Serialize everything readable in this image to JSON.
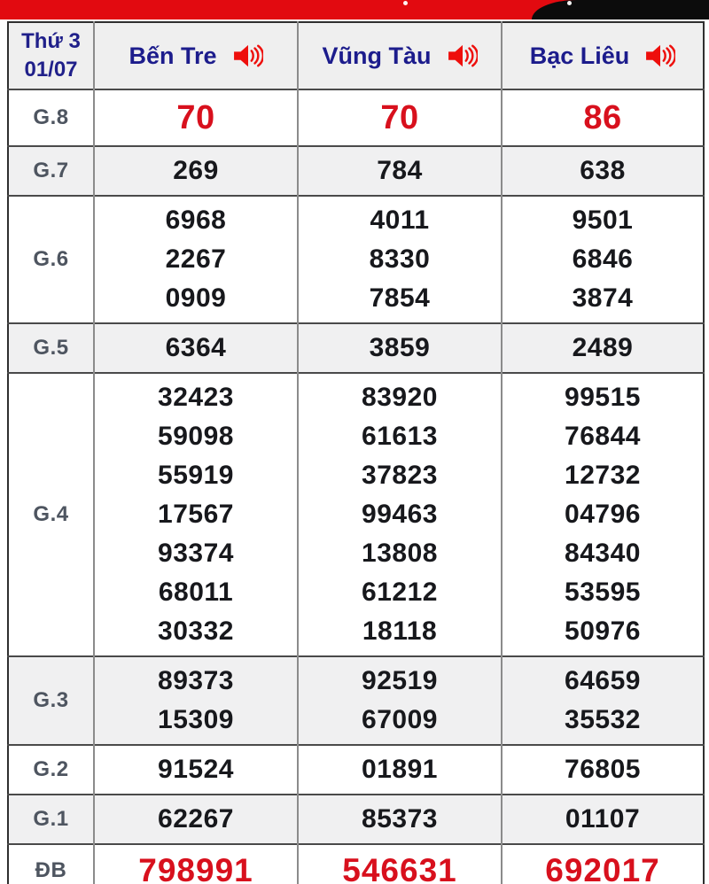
{
  "banner": {
    "red_color": "#e20a10",
    "black_color": "#0c0c0c"
  },
  "header": {
    "date_line1": "Thứ 3",
    "date_line2": "01/07",
    "columns": [
      {
        "label": "Bến Tre"
      },
      {
        "label": "Vũng Tàu"
      },
      {
        "label": "Bạc Liêu"
      }
    ]
  },
  "results": {
    "rows": [
      {
        "key": "g8",
        "prize": "G.8",
        "highlight": true,
        "cells": [
          [
            "70"
          ],
          [
            "70"
          ],
          [
            "86"
          ]
        ]
      },
      {
        "key": "g7",
        "prize": "G.7",
        "cells": [
          [
            "269"
          ],
          [
            "784"
          ],
          [
            "638"
          ]
        ]
      },
      {
        "key": "g6",
        "prize": "G.6",
        "cells": [
          [
            "6968",
            "2267",
            "0909"
          ],
          [
            "4011",
            "8330",
            "7854"
          ],
          [
            "9501",
            "6846",
            "3874"
          ]
        ]
      },
      {
        "key": "g5",
        "prize": "G.5",
        "cells": [
          [
            "6364"
          ],
          [
            "3859"
          ],
          [
            "2489"
          ]
        ]
      },
      {
        "key": "g4",
        "prize": "G.4",
        "cells": [
          [
            "32423",
            "59098",
            "55919",
            "17567",
            "93374",
            "68011",
            "30332"
          ],
          [
            "83920",
            "61613",
            "37823",
            "99463",
            "13808",
            "61212",
            "18118"
          ],
          [
            "99515",
            "76844",
            "12732",
            "04796",
            "84340",
            "53595",
            "50976"
          ]
        ]
      },
      {
        "key": "g3",
        "prize": "G.3",
        "cells": [
          [
            "89373",
            "15309"
          ],
          [
            "92519",
            "67009"
          ],
          [
            "64659",
            "35532"
          ]
        ]
      },
      {
        "key": "g2",
        "prize": "G.2",
        "cells": [
          [
            "91524"
          ],
          [
            "01891"
          ],
          [
            "76805"
          ]
        ]
      },
      {
        "key": "g1",
        "prize": "G.1",
        "cells": [
          [
            "62267"
          ],
          [
            "85373"
          ],
          [
            "01107"
          ]
        ]
      },
      {
        "key": "db",
        "prize": "ĐB",
        "highlight": true,
        "cells": [
          [
            "798991"
          ],
          [
            "546631"
          ],
          [
            "692017"
          ]
        ]
      }
    ]
  },
  "colors": {
    "highlight_number": "#d8101d",
    "normal_number": "#17181c",
    "province_navy": "#1c1c8c",
    "label_gray": "#4e5560",
    "alt_row_bg": "#f0f0f1"
  }
}
